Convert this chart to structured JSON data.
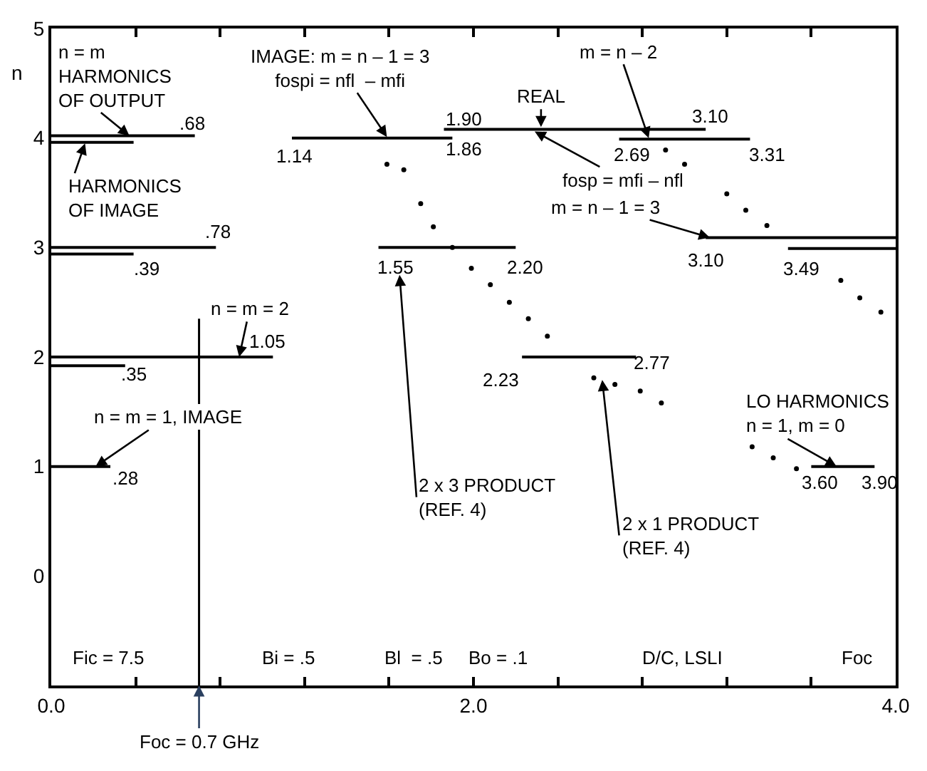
{
  "chart_data": {
    "type": "line",
    "ylabel": "n",
    "xlim": [
      0,
      4
    ],
    "ylim": [
      -1,
      5
    ],
    "xticks": [
      {
        "value": 0,
        "label": "0.0"
      },
      {
        "value": 0.4,
        "label": null
      },
      {
        "value": 0.8,
        "label": null
      },
      {
        "value": 1.2,
        "label": null
      },
      {
        "value": 1.6,
        "label": null
      },
      {
        "value": 2.0,
        "label": "2.0"
      },
      {
        "value": 2.4,
        "label": null
      },
      {
        "value": 2.8,
        "label": null
      },
      {
        "value": 3.2,
        "label": null
      },
      {
        "value": 3.6,
        "label": null
      },
      {
        "value": 4.0,
        "label": "4.0"
      }
    ],
    "yticks": [
      0,
      1,
      2,
      3,
      4,
      5
    ],
    "marker": "none",
    "line_style": "solid",
    "series": [
      {
        "color": "#000000",
        "x": [
          0,
          0.28
        ],
        "values": [
          1.0,
          1.0
        ]
      },
      {
        "color": "#000000",
        "x": [
          0,
          1.05
        ],
        "values": [
          2.0,
          2.0
        ]
      },
      {
        "color": "#000000",
        "x": [
          0,
          0.35
        ],
        "values": [
          1.92,
          1.92
        ]
      },
      {
        "color": "#000000",
        "x": [
          0,
          0.78
        ],
        "values": [
          3.0,
          3.0
        ]
      },
      {
        "color": "#000000",
        "x": [
          0,
          0.39
        ],
        "values": [
          2.94,
          2.94
        ]
      },
      {
        "color": "#000000",
        "x": [
          0,
          0.68
        ],
        "values": [
          4.02,
          4.02
        ]
      },
      {
        "color": "#000000",
        "x": [
          0,
          0.39
        ],
        "values": [
          3.96,
          3.96
        ]
      },
      {
        "color": "#000000",
        "x": [
          1.14,
          1.9
        ],
        "values": [
          4.0,
          4.0
        ]
      },
      {
        "color": "#000000",
        "x": [
          1.86,
          3.1
        ],
        "values": [
          4.08,
          4.08
        ]
      },
      {
        "color": "#000000",
        "x": [
          2.69,
          3.31
        ],
        "values": [
          3.99,
          3.99
        ]
      },
      {
        "color": "#000000",
        "x": [
          1.55,
          2.2
        ],
        "values": [
          3.0,
          3.0
        ]
      },
      {
        "color": "#000000",
        "x": [
          3.1,
          4.0
        ],
        "values": [
          3.09,
          3.09
        ]
      },
      {
        "color": "#000000",
        "x": [
          3.49,
          4.0
        ],
        "values": [
          2.99,
          2.99
        ]
      },
      {
        "color": "#000000",
        "x": [
          2.23,
          2.77
        ],
        "values": [
          2.0,
          2.0
        ]
      },
      {
        "color": "#000000",
        "x": [
          3.6,
          3.9
        ],
        "values": [
          1.0,
          1.0
        ]
      },
      {
        "type": "scatter",
        "color": "#000000",
        "x": [
          1.59,
          1.67,
          1.75,
          1.81,
          1.9,
          1.99,
          2.08,
          2.17,
          2.26,
          2.35,
          2.57,
          2.67,
          2.79,
          2.89,
          3.32,
          3.42,
          3.53,
          2.91,
          3.0,
          3.2,
          3.29,
          3.39,
          3.74,
          3.83,
          3.93
        ],
        "values": [
          3.76,
          3.71,
          3.4,
          3.19,
          3.0,
          2.81,
          2.66,
          2.5,
          2.35,
          2.19,
          1.81,
          1.75,
          1.69,
          1.58,
          1.18,
          1.08,
          0.98,
          3.89,
          3.76,
          3.49,
          3.34,
          3.2,
          2.7,
          2.54,
          2.41
        ]
      }
    ],
    "ref_lines": [
      {
        "axis": "x",
        "value": 0.7,
        "label": "Foc = 0.7 GHz"
      }
    ],
    "annotations": [
      {
        "text": "n = m\nHARMONICS\nOF OUTPUT",
        "x": 0.37,
        "y": 4.02
      },
      {
        "text": "HARMONICS\nOF IMAGE",
        "x": 0.16,
        "y": 3.95
      },
      ".68",
      ".78",
      ".39",
      {
        "text": "n = m = 2",
        "x": 0.89,
        "y": 2.0
      },
      "1.05",
      ".35",
      {
        "text": "n = m = 1, IMAGE",
        "x": 0.21,
        "y": 1.0
      },
      ".28",
      {
        "text": "IMAGE: m = n – 1 = 3\nfospi = nfl  – mfi",
        "x": 1.59,
        "y": 4.01
      },
      "1.14",
      "1.90",
      "1.86",
      {
        "text": "REAL",
        "x": 2.32,
        "y": 4.1
      },
      {
        "text": "m = n – 2",
        "x": 2.83,
        "y": 4.0
      },
      "3.10",
      "2.69",
      "3.31",
      {
        "text": "fosp = mfi – nfl",
        "x": 2.29,
        "y": 4.06
      },
      {
        "text": "m = n – 1 = 3",
        "x": 3.12,
        "y": 3.09
      },
      "1.55",
      "2.20",
      "3.10",
      "3.49",
      "2.23",
      "2.77",
      {
        "text": "LO HARMONICS\nn = 1, m = 0",
        "x": 3.72,
        "y": 1.0
      },
      "3.60",
      "3.90",
      "2 x 3 PRODUCT\n(REF. 4)",
      {
        "text": "2 x 1 PRODUCT\n(REF. 4)",
        "x": 2.61,
        "y": 1.79
      },
      "Fic = 7.5",
      "Bi = .5",
      "Bl  = .5",
      "Bo = .1",
      "D/C, LSLI",
      "Foc"
    ]
  }
}
